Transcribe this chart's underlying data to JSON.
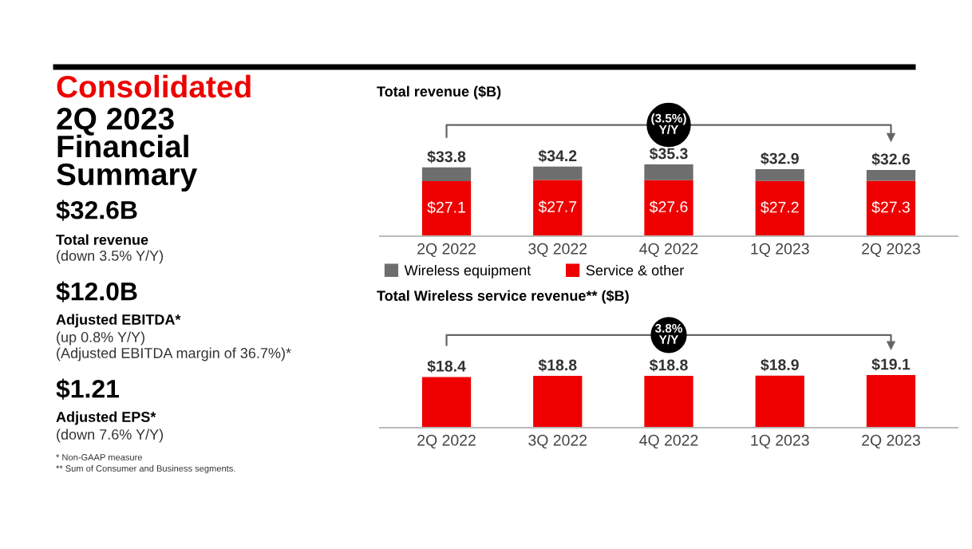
{
  "chart_data": [
    {
      "type": "other",
      "title": "Consolidated",
      "subtitle": "2Q 2023\nFinancial\nSummary",
      "annotations": [
        "$32.6B",
        "Total revenue",
        "(down 3.5% Y/Y)",
        "$12.0B",
        "Adjusted EBITDA*",
        "(up 0.8% Y/Y)",
        "(Adjusted EBITDA margin of 36.7%)*",
        "$1.21",
        "Adjusted EPS*",
        "(down 7.6% Y/Y)",
        "* Non-GAAP measure",
        "** Sum of Consumer and Business segments."
      ]
    },
    {
      "type": "bar",
      "title": "Total revenue ($B)",
      "categories": [
        "2Q 2022",
        "3Q 2022",
        "4Q 2022",
        "1Q 2023",
        "2Q 2023"
      ],
      "stacked": true,
      "legend": "bottom left",
      "series": [
        {
          "name": "Service & other",
          "color": "#ee0000",
          "values": [
            27.1,
            27.7,
            27.6,
            27.2,
            27.3
          ],
          "value_labels": [
            "$27.1",
            "$27.7",
            "$27.6",
            "$27.2",
            "$27.3"
          ]
        },
        {
          "name": "Wireless equipment",
          "color": "#6e6e6e",
          "values": [
            6.7,
            6.5,
            7.7,
            5.7,
            5.3
          ]
        }
      ],
      "totals": [
        "$33.8",
        "$34.2",
        "$35.3",
        "$32.9",
        "$32.6"
      ],
      "annotations": [
        "(3.5%)\nY/Y"
      ]
    },
    {
      "type": "bar",
      "title": "Total Wireless service revenue** ($B)",
      "categories": [
        "2Q 2022",
        "3Q 2022",
        "4Q 2022",
        "1Q 2023",
        "2Q 2023"
      ],
      "series": [
        {
          "color": "#ee0000",
          "values": [
            18.4,
            18.8,
            18.8,
            18.9,
            19.1
          ],
          "value_labels": [
            "$18.4",
            "$18.8",
            "$18.8",
            "$18.9",
            "$19.1"
          ]
        }
      ],
      "annotations": [
        "3.8%\nY/Y"
      ]
    }
  ]
}
